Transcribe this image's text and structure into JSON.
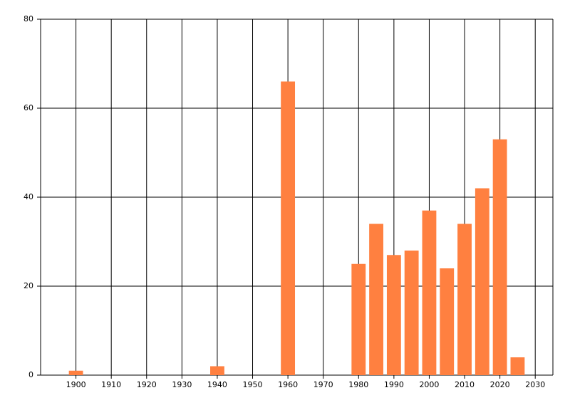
{
  "chart_data": {
    "type": "bar",
    "x": [
      1900,
      1940,
      1960,
      1980,
      1985,
      1990,
      1995,
      2000,
      2005,
      2010,
      2015,
      2020,
      2025
    ],
    "values": [
      1,
      2,
      66,
      25,
      34,
      27,
      28,
      37,
      24,
      34,
      42,
      53,
      4
    ],
    "color": "#ff8040",
    "xlim": [
      1890,
      2035
    ],
    "xticks": [
      1900,
      1910,
      1920,
      1930,
      1940,
      1950,
      1960,
      1970,
      1980,
      1990,
      2000,
      2010,
      2020,
      2030
    ],
    "ylim": [
      0,
      80
    ],
    "yticks": [
      0,
      20,
      40,
      60,
      80
    ],
    "grid": true
  }
}
